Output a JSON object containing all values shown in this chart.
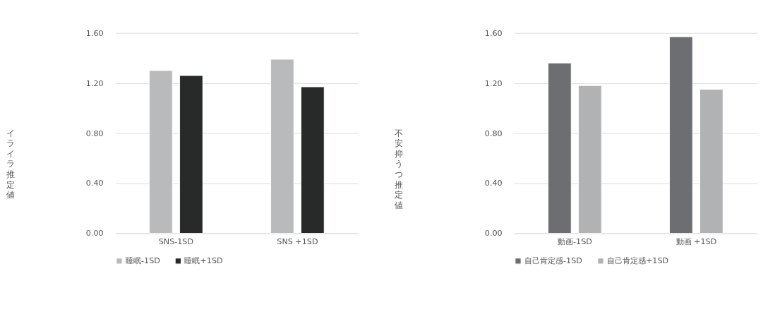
{
  "chart_data": [
    {
      "type": "bar",
      "ylabel": "イライラ推定値",
      "categories": [
        "SNS-1SD",
        "SNS +1SD"
      ],
      "series": [
        {
          "name": "睡眠-1SD",
          "color": "#b9babb",
          "values": [
            1.3,
            1.39
          ]
        },
        {
          "name": "睡眠+1SD",
          "color": "#282a29",
          "values": [
            1.26,
            1.17
          ]
        }
      ],
      "ylim": [
        0,
        1.6
      ],
      "yticks": [
        {
          "value": 0,
          "label": "0.00"
        },
        {
          "value": 0.4,
          "label": "0.40"
        },
        {
          "value": 0.8,
          "label": "0.80"
        },
        {
          "value": 1.2,
          "label": "1.20"
        },
        {
          "value": 1.6,
          "label": "1.60"
        }
      ],
      "grid": "y",
      "legend": "bottom"
    },
    {
      "type": "bar",
      "ylabel": "不安抑うつ推定値",
      "categories": [
        "動画-1SD",
        "動画 +1SD"
      ],
      "series": [
        {
          "name": "自己肯定感-1SD",
          "color": "#6d6e71",
          "values": [
            1.36,
            1.57
          ]
        },
        {
          "name": "自己肯定感+1SD",
          "color": "#b1b2b4",
          "values": [
            1.18,
            1.15
          ]
        }
      ],
      "ylim": [
        0,
        1.6
      ],
      "yticks": [
        {
          "value": 0,
          "label": "0.00"
        },
        {
          "value": 0.4,
          "label": "0.40"
        },
        {
          "value": 0.8,
          "label": "0.80"
        },
        {
          "value": 1.2,
          "label": "1.20"
        },
        {
          "value": 1.6,
          "label": "1.60"
        }
      ],
      "grid": "y",
      "legend": "bottom"
    }
  ]
}
